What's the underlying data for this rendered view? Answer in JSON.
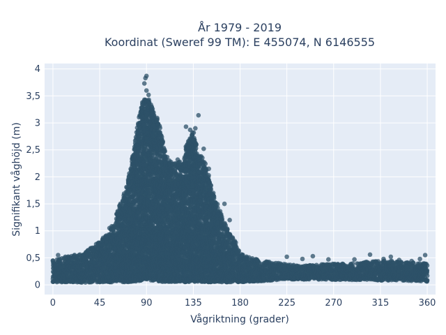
{
  "chart_data": {
    "type": "scatter",
    "title_line1": "År 1979 - 2019",
    "title_line2": "Koordinat (Sweref 99 TM): E 455074, N 6146555",
    "xlabel": "Vågriktning (grader)",
    "ylabel": "Signifikant våghöjd (m)",
    "xlim": [
      -8,
      368
    ],
    "ylim": [
      -0.18,
      4.1
    ],
    "xticks": [
      0,
      45,
      90,
      135,
      180,
      225,
      270,
      315,
      360
    ],
    "xtick_labels": [
      "0",
      "45",
      "90",
      "135",
      "180",
      "225",
      "270",
      "315",
      "360"
    ],
    "yticks": [
      0,
      0.5,
      1,
      1.5,
      2,
      2.5,
      3,
      3.5,
      4
    ],
    "ytick_labels": [
      "0",
      "0,5",
      "1",
      "1,5",
      "2",
      "2,5",
      "3",
      "3,5",
      "4"
    ],
    "grid": true,
    "plot_background": "#e5ecf6",
    "marker_color": "#2e5168",
    "envelope": {
      "x": [
        0,
        10,
        20,
        30,
        40,
        50,
        60,
        70,
        75,
        80,
        85,
        88,
        90,
        92,
        95,
        100,
        105,
        110,
        115,
        120,
        125,
        128,
        132,
        135,
        140,
        145,
        150,
        155,
        160,
        165,
        170,
        175,
        180,
        190,
        200,
        210,
        225,
        240,
        260,
        280,
        300,
        320,
        340,
        360
      ],
      "ymax": [
        0.45,
        0.5,
        0.55,
        0.6,
        0.72,
        0.9,
        1.25,
        1.75,
        2.2,
        2.85,
        3.25,
        3.55,
        3.4,
        3.45,
        3.3,
        3.1,
        2.75,
        2.35,
        2.25,
        2.3,
        2.25,
        2.55,
        2.75,
        2.85,
        2.45,
        2.35,
        2.0,
        1.7,
        1.4,
        1.15,
        0.95,
        0.82,
        0.6,
        0.5,
        0.45,
        0.42,
        0.38,
        0.35,
        0.38,
        0.4,
        0.42,
        0.45,
        0.42,
        0.4
      ],
      "ymin": [
        0.05,
        0.05,
        0.05,
        0.04,
        0.05,
        0.05,
        0.05,
        0.05,
        0.06,
        0.06,
        0.08,
        0.1,
        0.1,
        0.1,
        0.08,
        0.07,
        0.06,
        0.05,
        0.05,
        0.05,
        0.05,
        0.05,
        0.06,
        0.06,
        0.06,
        0.06,
        0.05,
        0.05,
        0.05,
        0.05,
        0.05,
        0.05,
        0.05,
        0.06,
        0.07,
        0.08,
        0.1,
        0.1,
        0.1,
        0.09,
        0.09,
        0.08,
        0.08,
        0.06
      ]
    },
    "outlier_points": [
      {
        "x": 90,
        "y": 3.87
      },
      {
        "x": 89,
        "y": 3.83
      },
      {
        "x": 88,
        "y": 3.73
      },
      {
        "x": 90,
        "y": 3.6
      },
      {
        "x": 92,
        "y": 3.52
      },
      {
        "x": 86,
        "y": 3.38
      },
      {
        "x": 95,
        "y": 3.2
      },
      {
        "x": 100,
        "y": 3.05
      },
      {
        "x": 103,
        "y": 2.82
      },
      {
        "x": 97,
        "y": 2.95
      },
      {
        "x": 128,
        "y": 2.93
      },
      {
        "x": 132,
        "y": 2.87
      },
      {
        "x": 140,
        "y": 3.14
      },
      {
        "x": 137,
        "y": 2.9
      },
      {
        "x": 131,
        "y": 2.63
      },
      {
        "x": 138,
        "y": 2.6
      },
      {
        "x": 145,
        "y": 2.52
      },
      {
        "x": 112,
        "y": 2.3
      },
      {
        "x": 120,
        "y": 2.32
      },
      {
        "x": 150,
        "y": 2.15
      },
      {
        "x": 165,
        "y": 1.5
      },
      {
        "x": 170,
        "y": 1.2
      },
      {
        "x": 5,
        "y": 0.55
      },
      {
        "x": 12,
        "y": 0.52
      },
      {
        "x": 26,
        "y": 0.56
      },
      {
        "x": 38,
        "y": 0.65
      },
      {
        "x": 225,
        "y": 0.52
      },
      {
        "x": 240,
        "y": 0.48
      },
      {
        "x": 250,
        "y": 0.53
      },
      {
        "x": 265,
        "y": 0.47
      },
      {
        "x": 290,
        "y": 0.47
      },
      {
        "x": 302,
        "y": 0.42
      },
      {
        "x": 305,
        "y": 0.56
      },
      {
        "x": 318,
        "y": 0.48
      },
      {
        "x": 325,
        "y": 0.52
      },
      {
        "x": 333,
        "y": 0.46
      },
      {
        "x": 345,
        "y": 0.44
      },
      {
        "x": 353,
        "y": 0.48
      },
      {
        "x": 358,
        "y": 0.55
      },
      {
        "x": 352,
        "y": 0.35
      },
      {
        "x": 358,
        "y": 0.32
      }
    ]
  }
}
